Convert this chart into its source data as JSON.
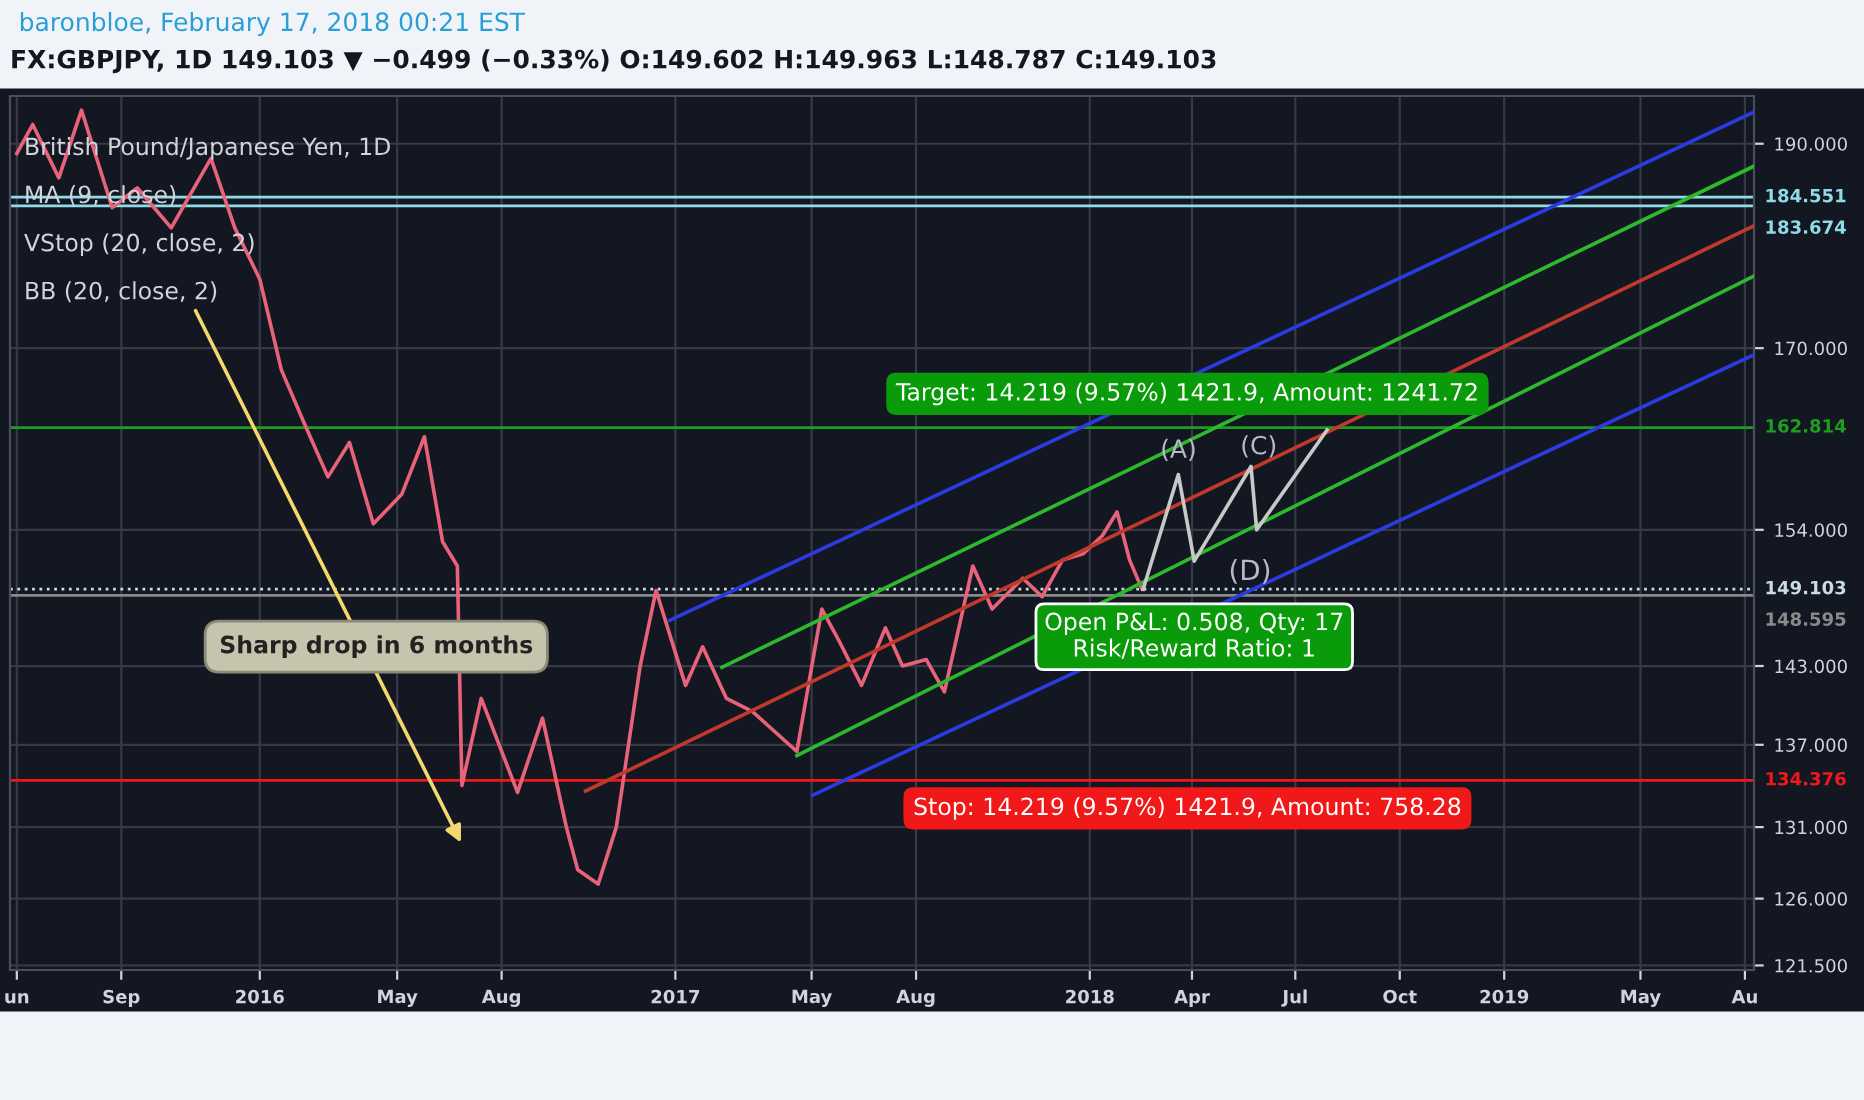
{
  "chart_data": {
    "type": "line",
    "title": "FX:GBPJPY, 1D 149.103 ▼ −0.499 (−0.33%) O:149.602 H:149.963 L:148.787 C:149.103",
    "annotations": [
      "baronbloe, February 17, 2018 00:21 EST",
      "British Pound/Japanese Yen, 1D",
      "MA (9, close)",
      "VStop (20, close, 2)",
      "BB (20, close, 2)",
      "Sharp drop in 6 months",
      {
        "text": "Target: 14.219 (9.57%) 1421.9, Amount: 1241.72",
        "x": "2018-03-28",
        "y": 162.814
      },
      {
        "text": "Stop: 14.219 (9.57%) 1421.9, Amount: 758.28",
        "x": "2018-03-28",
        "y": 134.376
      },
      {
        "text": "Open P&L: 0.508, Qty: 17\nRisk/Reward Ratio: 1",
        "x": "2018-04-03",
        "y": 148.595
      },
      "(A)",
      "(C)",
      "(D)"
    ],
    "series": [
      {
        "color": "#e8637a",
        "x": [
          "2015-06-01",
          "2015-06-15",
          "2015-07-08",
          "2015-07-28",
          "2015-08-24",
          "2015-09-15",
          "2015-10-15",
          "2015-11-19",
          "2015-12-10",
          "2016-01-01",
          "2016-01-20",
          "2016-02-10",
          "2016-03-01",
          "2016-03-20",
          "2016-04-10",
          "2016-05-05",
          "2016-05-25",
          "2016-06-10",
          "2016-06-23",
          "2016-06-27",
          "2016-07-14",
          "2016-08-15",
          "2016-09-06",
          "2016-09-27",
          "2016-10-07",
          "2016-10-25",
          "2016-11-10",
          "2016-12-01",
          "2016-12-15",
          "2017-01-10",
          "2017-01-25",
          "2017-02-15",
          "2017-03-10",
          "2017-04-18",
          "2017-05-10",
          "2017-05-25",
          "2017-06-14",
          "2017-07-05",
          "2017-07-20",
          "2017-08-10",
          "2017-08-26",
          "2017-09-20",
          "2017-10-07",
          "2017-11-03",
          "2017-11-20",
          "2017-12-08",
          "2017-12-26",
          "2018-01-12",
          "2018-01-25",
          "2018-02-05",
          "2018-02-16"
        ],
        "values": [
          189.0,
          192.0,
          186.5,
          193.5,
          183.5,
          185.5,
          181.5,
          188.5,
          181.5,
          176.5,
          168.0,
          163.0,
          158.5,
          161.5,
          154.5,
          157.0,
          162.0,
          153.0,
          151.0,
          134.0,
          140.5,
          133.5,
          139.0,
          131.0,
          128.0,
          127.0,
          131.0,
          143.0,
          149.0,
          141.5,
          144.5,
          140.5,
          139.5,
          136.5,
          147.5,
          145.0,
          141.5,
          146.0,
          143.0,
          143.5,
          141.0,
          151.0,
          147.5,
          150.0,
          148.5,
          151.5,
          152.0,
          153.5,
          155.5,
          151.5,
          149.103
        ]
      },
      {
        "color": "#2b3be0",
        "x": [
          "2016-12-27",
          "2019-08-09"
        ],
        "values": [
          146.6,
          193.3
        ]
      },
      {
        "color": "#2b3be0",
        "x": [
          "2017-05-02",
          "2019-08-09"
        ],
        "values": [
          133.3,
          169.4
        ]
      },
      {
        "color": "#2eb82e",
        "x": [
          "2017-02-11",
          "2019-08-09"
        ],
        "values": [
          142.9,
          187.7
        ]
      },
      {
        "color": "#2eb82e",
        "x": [
          "2017-04-18",
          "2019-08-09"
        ],
        "values": [
          136.2,
          176.8
        ]
      },
      {
        "color": "#c0392b",
        "x": [
          "2016-10-14",
          "2019-08-09"
        ],
        "values": [
          133.6,
          181.7
        ]
      },
      {
        "color": "#c8c8c8",
        "x": [
          "2018-02-17",
          "2018-03-20",
          "2018-04-03",
          "2018-05-23",
          "2018-05-28",
          "2018-07-29"
        ],
        "values": [
          149.1,
          158.7,
          151.4,
          159.4,
          154.0,
          162.6
        ]
      }
    ],
    "ref_lines": [
      {
        "axis": "y",
        "value": 184.551,
        "label": "184.551",
        "color": "#8fdbe8",
        "line_style": "solid"
      },
      {
        "axis": "y",
        "value": 183.674,
        "label": "183.674",
        "color": "#8fdbe8",
        "line_style": "solid"
      },
      {
        "axis": "y",
        "value": 162.814,
        "label": "162.814",
        "color": "#1e9e1e",
        "line_style": "solid"
      },
      {
        "axis": "y",
        "value": 149.103,
        "label": "149.103",
        "color": "#c9dde0",
        "line_style": "dotted"
      },
      {
        "axis": "y",
        "value": 148.595,
        "label": "148.595",
        "color": "#8a8a8a",
        "line_style": "solid"
      },
      {
        "axis": "y",
        "value": 134.376,
        "label": "134.376",
        "color": "#f01818",
        "line_style": "solid"
      }
    ],
    "xlim": [
      "2015-05-26",
      "2019-08-09"
    ],
    "xticks": [
      {
        "value": "2015-06-01",
        "label": "un"
      },
      {
        "value": "2015-09-01",
        "label": "Sep"
      },
      {
        "value": "2016-01-01",
        "label": "2016"
      },
      {
        "value": "2016-05-01",
        "label": "May"
      },
      {
        "value": "2016-08-01",
        "label": "Aug"
      },
      {
        "value": "2017-01-01",
        "label": "2017"
      },
      {
        "value": "2017-05-01",
        "label": "May"
      },
      {
        "value": "2017-08-01",
        "label": "Aug"
      },
      {
        "value": "2018-01-01",
        "label": "2018"
      },
      {
        "value": "2018-04-01",
        "label": "Apr"
      },
      {
        "value": "2018-07-01",
        "label": "Jul"
      },
      {
        "value": "2018-10-01",
        "label": "Oct"
      },
      {
        "value": "2019-01-01",
        "label": "2019"
      },
      {
        "value": "2019-05-01",
        "label": "May"
      },
      {
        "value": "2019-08-01",
        "label": "Au"
      }
    ],
    "ylim": [
      121.2,
      195.0
    ],
    "yticks": [
      {
        "value": 121.5,
        "label": "121.500"
      },
      {
        "value": 126,
        "label": "126.000"
      },
      {
        "value": 131,
        "label": "131.000"
      },
      {
        "value": 137,
        "label": "137.000"
      },
      {
        "value": 143,
        "label": "143.000"
      },
      {
        "value": 154,
        "label": "154.000"
      },
      {
        "value": 170,
        "label": "170.000"
      },
      {
        "value": 190,
        "label": "190.000"
      }
    ],
    "log": "y",
    "grid": true,
    "line_style": "solid",
    "marker": "none"
  }
}
